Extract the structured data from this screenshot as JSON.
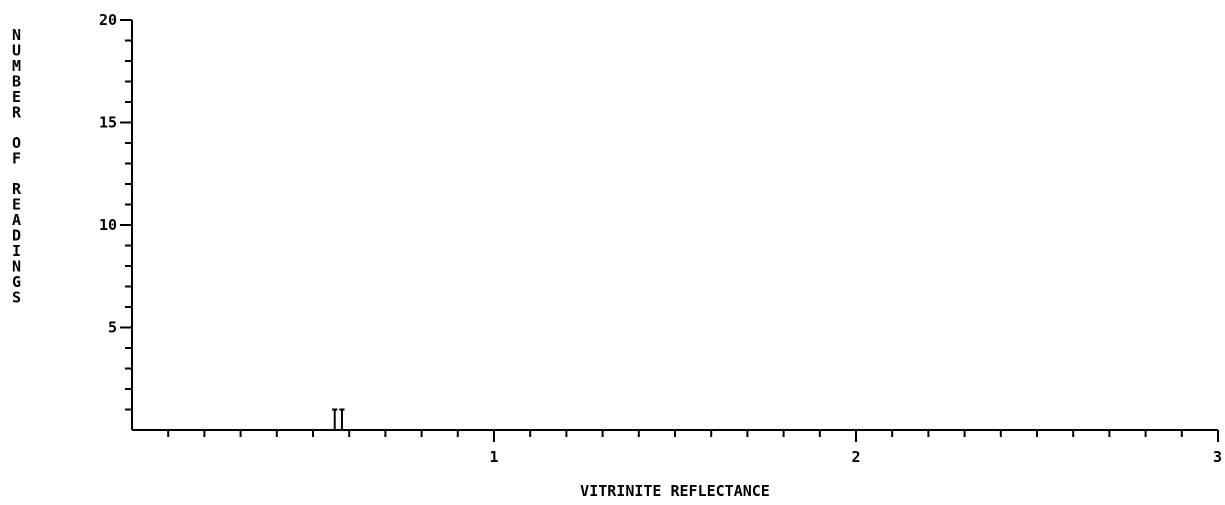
{
  "chart_data": {
    "type": "bar",
    "title": "",
    "xlabel": "VITRINITE REFLECTANCE",
    "ylabel": "NUMBER OF READINGS",
    "xlim": [
      0,
      3
    ],
    "ylim": [
      0,
      20
    ],
    "x_major_ticks": [
      1,
      2,
      3
    ],
    "x_tick_labels": [
      "1",
      "2",
      "3"
    ],
    "x_minor_step": 0.1,
    "y_major_ticks": [
      5,
      10,
      15,
      20
    ],
    "y_tick_labels": [
      "5",
      "10",
      "15",
      "20"
    ],
    "y_minor_step": 1,
    "bin_width": 0.02,
    "series": [
      {
        "x": [
          0.56,
          0.58
        ],
        "values": [
          1,
          1
        ]
      }
    ],
    "grid": false,
    "colors": {
      "ink": "#000000",
      "background": "#ffffff"
    }
  }
}
